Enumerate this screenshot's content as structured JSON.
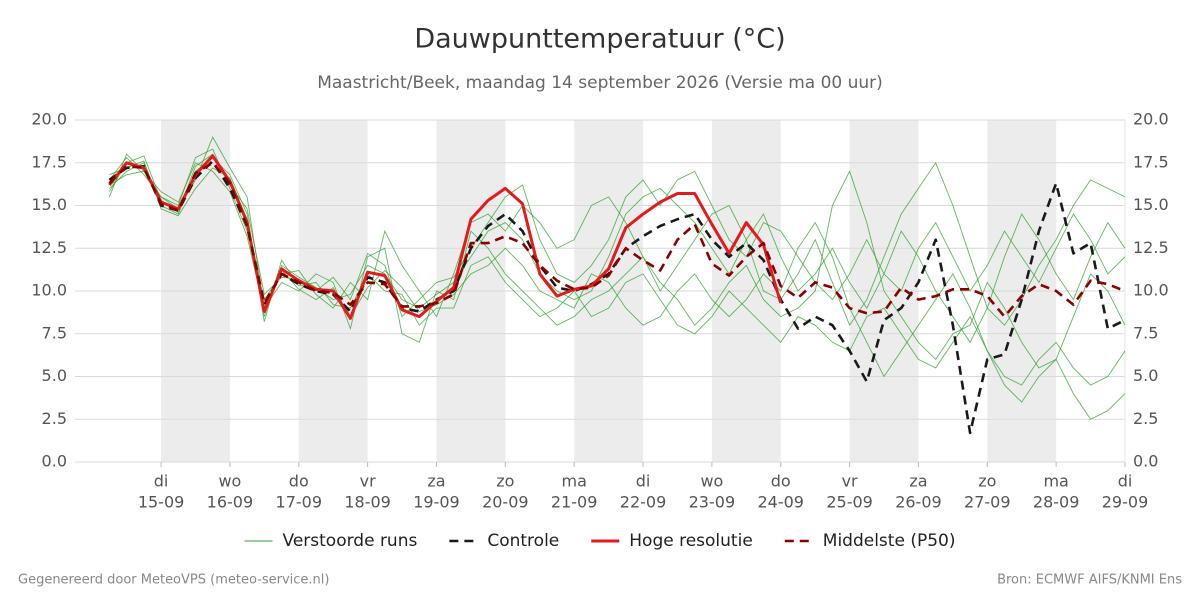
{
  "chart_data": {
    "type": "line",
    "title": "Dauwpunttemperatuur (°C)",
    "subtitle": "Maastricht/Beek, maandag 14 september 2026 (Versie ma 00 uur)",
    "footer_left": "Gegenereerd door MeteoVPS (meteo-service.nl)",
    "footer_right": "Bron: ECMWF AIFS/KNMI Ens",
    "x": [
      -18,
      -12,
      -6,
      0,
      6,
      12,
      18,
      24,
      30,
      36,
      42,
      48,
      54,
      60,
      66,
      72,
      78,
      84,
      90,
      96,
      102,
      108,
      114,
      120,
      126,
      132,
      138,
      144,
      150,
      156,
      162,
      168,
      174,
      180,
      186,
      192,
      198,
      204,
      210,
      216,
      222,
      228,
      234,
      240,
      246,
      252,
      258,
      264,
      270,
      276,
      282,
      288,
      294,
      300,
      306,
      312,
      318,
      324,
      330,
      336
    ],
    "xlim": [
      -30,
      336
    ],
    "xticks": [
      {
        "value": 0,
        "label": [
          "di",
          "15-09"
        ]
      },
      {
        "value": 24,
        "label": [
          "wo",
          "16-09"
        ]
      },
      {
        "value": 48,
        "label": [
          "do",
          "17-09"
        ]
      },
      {
        "value": 72,
        "label": [
          "vr",
          "18-09"
        ]
      },
      {
        "value": 96,
        "label": [
          "za",
          "19-09"
        ]
      },
      {
        "value": 120,
        "label": [
          "zo",
          "20-09"
        ]
      },
      {
        "value": 144,
        "label": [
          "ma",
          "21-09"
        ]
      },
      {
        "value": 168,
        "label": [
          "di",
          "22-09"
        ]
      },
      {
        "value": 192,
        "label": [
          "wo",
          "23-09"
        ]
      },
      {
        "value": 216,
        "label": [
          "do",
          "24-09"
        ]
      },
      {
        "value": 240,
        "label": [
          "vr",
          "25-09"
        ]
      },
      {
        "value": 264,
        "label": [
          "za",
          "26-09"
        ]
      },
      {
        "value": 288,
        "label": [
          "zo",
          "27-09"
        ]
      },
      {
        "value": 312,
        "label": [
          "ma",
          "28-09"
        ]
      },
      {
        "value": 336,
        "label": [
          "di",
          "29-09"
        ]
      }
    ],
    "ylim": [
      0,
      20
    ],
    "yticks": [
      {
        "value": 0,
        "label": "0.0"
      },
      {
        "value": 2.5,
        "label": "2.5"
      },
      {
        "value": 5,
        "label": "5.0"
      },
      {
        "value": 7.5,
        "label": "7.5"
      },
      {
        "value": 10,
        "label": "10.0"
      },
      {
        "value": 12.5,
        "label": "12.5"
      },
      {
        "value": 15,
        "label": "15.0"
      },
      {
        "value": 17.5,
        "label": "17.5"
      },
      {
        "value": 20,
        "label": "20.0"
      }
    ],
    "grid": true,
    "alternate_day_shading": true,
    "legend": "bottom",
    "ensemble": {
      "name": "Verstoorde runs",
      "color": "#2ca02c",
      "members": [
        [
          16.0,
          17.0,
          17.5,
          15.0,
          14.5,
          17.0,
          17.8,
          16.8,
          14.5,
          8.5,
          11.5,
          10.8,
          10.2,
          9.5,
          9.8,
          11.5,
          11.0,
          9.5,
          9.0,
          9.8,
          10.5,
          12.0,
          13.5,
          14.0,
          13.0,
          11.0,
          10.0,
          9.5,
          10.0,
          12.0,
          14.5,
          15.5,
          16.0,
          15.0,
          14.0,
          12.5,
          11.0,
          13.0,
          14.5,
          12.0,
          10.0,
          11.0,
          12.5,
          10.5,
          9.0,
          11.0,
          13.5,
          12.0,
          10.0,
          8.5,
          7.0,
          9.0,
          12.0,
          14.5,
          13.0,
          11.0,
          9.5,
          12.0,
          14.0,
          12.5
        ],
        [
          15.5,
          18.0,
          17.0,
          15.5,
          14.8,
          16.5,
          19.0,
          17.2,
          15.5,
          9.0,
          10.5,
          10.0,
          11.0,
          10.5,
          7.8,
          12.0,
          12.5,
          7.5,
          7.0,
          10.0,
          9.5,
          13.5,
          12.5,
          11.0,
          10.0,
          9.0,
          8.0,
          8.5,
          9.5,
          10.0,
          11.0,
          12.0,
          10.5,
          9.5,
          8.0,
          9.0,
          10.5,
          11.5,
          9.5,
          8.5,
          9.0,
          10.0,
          15.0,
          17.0,
          14.0,
          10.0,
          8.5,
          7.0,
          6.0,
          7.5,
          8.0,
          10.5,
          9.0,
          7.0,
          5.5,
          6.0,
          8.5,
          11.0,
          10.0,
          8.0
        ],
        [
          16.5,
          17.8,
          16.8,
          15.5,
          15.0,
          17.8,
          18.3,
          16.0,
          13.5,
          9.5,
          11.0,
          11.2,
          9.8,
          9.0,
          10.5,
          9.5,
          13.5,
          11.5,
          10.0,
          8.5,
          11.0,
          14.0,
          14.5,
          13.5,
          15.0,
          14.0,
          12.5,
          13.0,
          15.0,
          15.5,
          14.0,
          12.0,
          10.0,
          11.5,
          13.0,
          14.5,
          15.0,
          13.0,
          10.0,
          9.5,
          11.0,
          13.0,
          10.5,
          8.0,
          9.5,
          12.0,
          14.5,
          16.0,
          17.5,
          15.0,
          12.0,
          9.0,
          8.0,
          9.5,
          11.5,
          13.0,
          15.0,
          16.5,
          16.0,
          15.5
        ],
        [
          16.8,
          17.2,
          17.6,
          14.8,
          14.4,
          16.0,
          17.2,
          16.6,
          14.2,
          8.2,
          11.8,
          10.3,
          10.5,
          9.2,
          9.0,
          11.0,
          10.0,
          9.8,
          8.0,
          9.0,
          9.0,
          11.5,
          12.0,
          10.5,
          9.5,
          8.5,
          9.0,
          10.0,
          8.5,
          9.0,
          10.5,
          11.0,
          9.5,
          8.0,
          7.5,
          8.5,
          10.0,
          9.0,
          8.0,
          7.0,
          8.5,
          8.0,
          7.0,
          6.5,
          8.5,
          9.0,
          7.5,
          6.0,
          5.5,
          7.0,
          8.5,
          6.5,
          5.0,
          4.5,
          6.0,
          7.0,
          5.5,
          4.5,
          5.0,
          6.5
        ],
        [
          15.8,
          17.5,
          17.9,
          15.3,
          14.6,
          17.3,
          18.0,
          16.2,
          14.8,
          9.8,
          10.8,
          10.7,
          10.0,
          10.8,
          9.5,
          12.2,
          11.5,
          8.5,
          9.5,
          10.5,
          10.8,
          12.5,
          14.0,
          15.5,
          16.2,
          13.0,
          11.0,
          10.5,
          11.5,
          13.0,
          15.5,
          16.5,
          15.0,
          16.5,
          17.0,
          15.0,
          13.0,
          12.0,
          14.0,
          13.5,
          12.0,
          10.5,
          9.5,
          11.0,
          13.0,
          11.0,
          10.0,
          12.5,
          14.0,
          12.0,
          10.0,
          11.5,
          13.5,
          12.0,
          10.5,
          12.5,
          14.5,
          13.0,
          11.0,
          12.0
        ],
        [
          16.2,
          16.8,
          17.0,
          15.8,
          15.2,
          17.5,
          17.0,
          15.8,
          13.2,
          8.8,
          11.2,
          10.1,
          9.5,
          10.2,
          8.5,
          10.2,
          11.2,
          10.2,
          8.8,
          9.2,
          9.8,
          11.0,
          11.5,
          12.5,
          11.5,
          10.0,
          9.5,
          9.0,
          11.0,
          10.5,
          9.0,
          8.0,
          8.5,
          10.0,
          11.0,
          9.5,
          8.5,
          9.5,
          11.0,
          10.0,
          12.5,
          14.0,
          12.0,
          9.0,
          7.0,
          5.0,
          6.5,
          8.0,
          9.5,
          11.0,
          9.0,
          6.5,
          4.5,
          3.5,
          5.0,
          6.0,
          4.0,
          2.5,
          3.0,
          4.0
        ]
      ]
    },
    "series": [
      {
        "name": "Controle",
        "color": "#1a1a1a",
        "style": "dashed",
        "values": [
          16.5,
          17.2,
          17.3,
          15.0,
          14.7,
          16.6,
          17.6,
          16.0,
          13.8,
          9.2,
          11.0,
          10.4,
          10.0,
          9.8,
          8.8,
          10.8,
          10.5,
          9.0,
          8.8,
          9.5,
          10.0,
          12.5,
          13.8,
          14.5,
          13.5,
          11.5,
          10.2,
          10.0,
          10.4,
          11.0,
          12.5,
          13.2,
          13.8,
          14.2,
          14.5,
          13.0,
          12.0,
          12.8,
          11.8,
          9.5,
          7.8,
          8.5,
          8.0,
          6.5,
          4.7,
          8.3,
          9.0,
          10.5,
          13.0,
          8.0,
          1.7,
          6.0,
          6.3,
          9.5,
          13.5,
          16.3,
          12.2,
          12.8,
          7.8,
          8.3
        ]
      },
      {
        "name": "Hoge resolutie",
        "color": "#e41a1c",
        "style": "solid",
        "values": [
          16.2,
          17.5,
          17.2,
          15.2,
          14.8,
          16.8,
          17.9,
          16.4,
          14.0,
          8.8,
          11.3,
          10.6,
          10.1,
          10.0,
          8.4,
          11.1,
          10.9,
          8.9,
          8.5,
          9.4,
          10.2,
          14.2,
          15.3,
          16.0,
          15.1,
          11.0,
          9.7,
          10.1,
          10.3,
          11.3,
          13.7,
          14.5,
          15.2,
          15.7,
          15.7,
          13.9,
          12.2,
          14.0,
          12.7,
          9.3,
          null,
          null,
          null,
          null,
          null,
          null,
          null,
          null,
          null,
          null,
          null,
          null,
          null,
          null,
          null,
          null,
          null,
          null,
          null,
          null
        ]
      },
      {
        "name": "Middelste (P50)",
        "color": "#8b0000",
        "style": "dashed",
        "values": [
          16.3,
          17.3,
          17.2,
          15.1,
          14.7,
          16.9,
          17.5,
          16.3,
          13.8,
          9.3,
          11.0,
          10.5,
          10.0,
          9.9,
          9.2,
          10.5,
          10.4,
          9.1,
          9.1,
          9.3,
          9.8,
          12.8,
          12.8,
          13.2,
          12.8,
          11.5,
          10.6,
          10.1,
          10.2,
          10.9,
          12.5,
          11.8,
          11.2,
          13.0,
          13.9,
          11.6,
          10.9,
          12.0,
          12.8,
          10.3,
          9.6,
          10.5,
          10.2,
          9.0,
          8.7,
          8.8,
          10.2,
          9.5,
          9.7,
          10.1,
          10.1,
          9.7,
          8.5,
          9.7,
          10.4,
          10.0,
          9.2,
          10.6,
          10.4,
          10.0
        ]
      }
    ]
  }
}
